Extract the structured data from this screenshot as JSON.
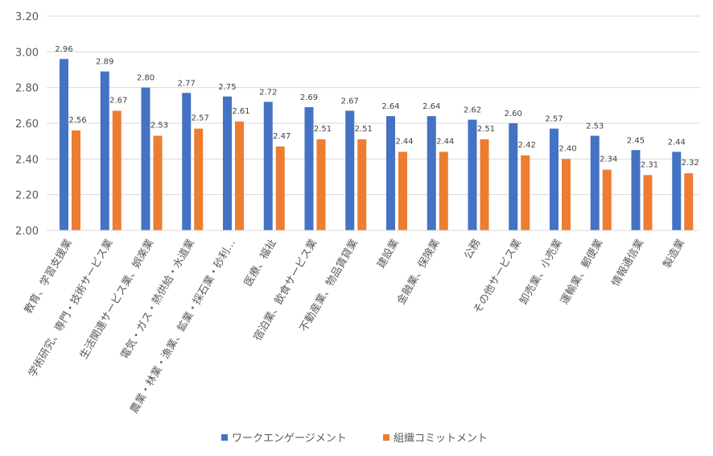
{
  "chart_data": {
    "type": "bar",
    "title": "",
    "xlabel": "",
    "ylabel": "",
    "ylim": [
      2.0,
      3.2
    ],
    "yticks": [
      "2.00",
      "2.20",
      "2.40",
      "2.60",
      "2.80",
      "3.00",
      "3.20"
    ],
    "grid": true,
    "legend_position": "bottom",
    "categories": [
      "教育、学習支援業",
      "学術研究、専門・技術サービス業",
      "生活関連サービス業、娯楽業",
      "電気・ガス・熱供給・水道業",
      "農業・林業・漁業、鉱業・採石業・砂利…",
      "医療、福祉",
      "宿泊業、飲食サービス業",
      "不動産業、物品賃貸業",
      "建設業",
      "金融業、保険業",
      "公務",
      "その他サービス業",
      "卸売業、小売業",
      "運輸業、郵便業",
      "情報通信業",
      "製造業"
    ],
    "series": [
      {
        "name": "ワークエンゲージメント",
        "color": "#4472C4",
        "values": [
          2.96,
          2.89,
          2.8,
          2.77,
          2.75,
          2.72,
          2.69,
          2.67,
          2.64,
          2.64,
          2.62,
          2.6,
          2.57,
          2.53,
          2.45,
          2.44
        ],
        "labels": [
          "2.96",
          "2.89",
          "2.80",
          "2.77",
          "2.75",
          "2.72",
          "2.69",
          "2.67",
          "2.64",
          "2.64",
          "2.62",
          "2.60",
          "2.57",
          "2.53",
          "2.45",
          "2.44"
        ]
      },
      {
        "name": "組織コミットメント",
        "color": "#ED7D31",
        "values": [
          2.56,
          2.67,
          2.53,
          2.57,
          2.61,
          2.47,
          2.51,
          2.51,
          2.44,
          2.44,
          2.51,
          2.42,
          2.4,
          2.34,
          2.31,
          2.32
        ],
        "labels": [
          "2.56",
          "2.67",
          "2.53",
          "2.57",
          "2.61",
          "2.47",
          "2.51",
          "2.51",
          "2.44",
          "2.44",
          "2.51",
          "2.42",
          "2.40",
          "2.34",
          "2.31",
          "2.32"
        ]
      }
    ],
    "gridline_color": "#D9D9D9"
  }
}
